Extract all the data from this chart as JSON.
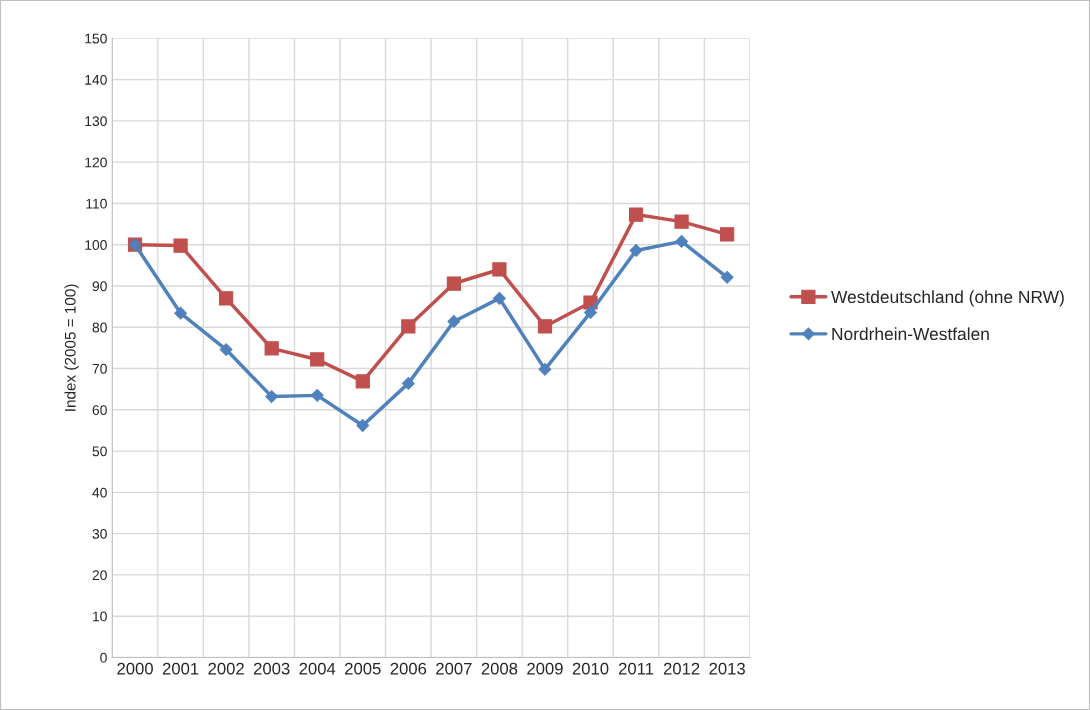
{
  "chart_data": {
    "type": "line",
    "ylabel": "Index (2005 = 100)",
    "categories": [
      "2000",
      "2001",
      "2002",
      "2003",
      "2004",
      "2005",
      "2006",
      "2007",
      "2008",
      "2009",
      "2010",
      "2011",
      "2012",
      "2013"
    ],
    "series": [
      {
        "name": "Westdeutschland (ohne NRW)",
        "color": "#c0504d",
        "marker": "square",
        "values": [
          100,
          99.8,
          87,
          74.9,
          72.2,
          66.9,
          80.2,
          90.6,
          94,
          80.2,
          86,
          107.3,
          105.6,
          102.5
        ]
      },
      {
        "name": "Nordrhein-Westfalen",
        "color": "#4f81bd",
        "marker": "diamond",
        "values": [
          100,
          83.4,
          74.6,
          63.2,
          63.5,
          56.2,
          66.4,
          81.4,
          87,
          69.8,
          83.6,
          98.6,
          100.8,
          92.1
        ]
      }
    ],
    "ylim": [
      0,
      150
    ],
    "yticks": [
      0,
      10,
      20,
      30,
      40,
      50,
      60,
      70,
      80,
      90,
      100,
      110,
      120,
      130,
      140,
      150
    ],
    "grid": true,
    "legend": "right",
    "line_style": "solid"
  }
}
